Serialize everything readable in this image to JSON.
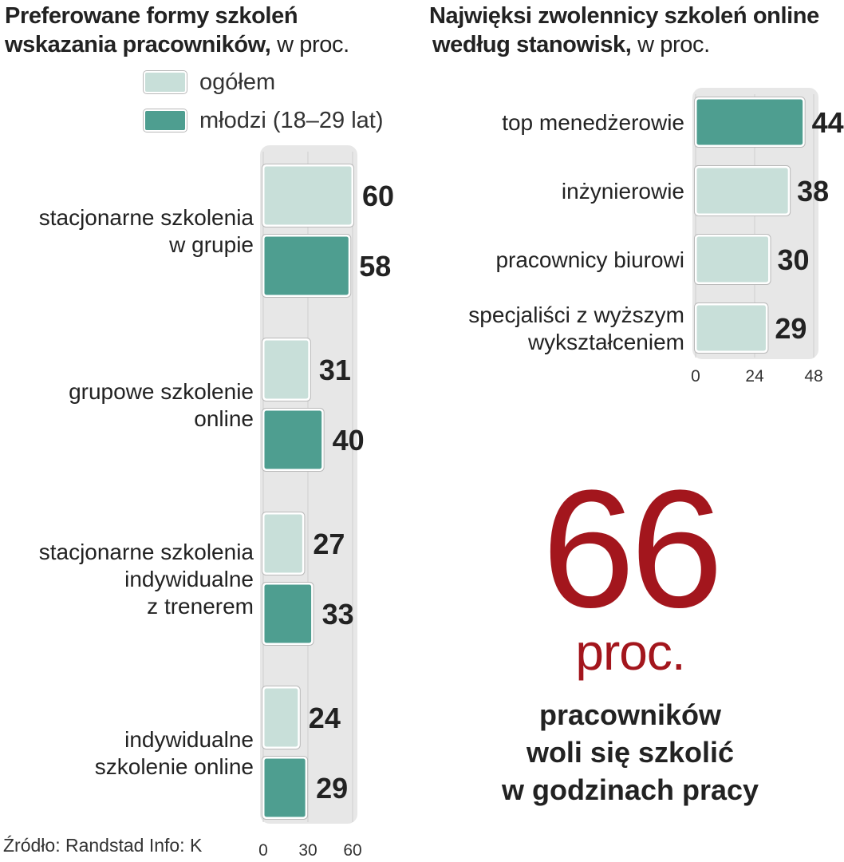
{
  "colors": {
    "light": "#c8dfd9",
    "dark": "#4e9e90",
    "panel": "#e7e7e7",
    "highlight": "#a3161d"
  },
  "chart_data": [
    {
      "type": "bar",
      "orientation": "horizontal",
      "title": "Preferowane formy szkoleń",
      "title_line2": "wskazania pracowników,",
      "unit": "w proc.",
      "categories": [
        [
          "stacjonarne szkolenia",
          "w grupie"
        ],
        [
          "grupowe szkolenie",
          "online"
        ],
        [
          "stacjonarne szkolenia",
          "indywidualne",
          "z trenerem"
        ],
        [
          "indywidualne",
          "szkolenie online"
        ]
      ],
      "series": [
        {
          "name": "ogółem",
          "color_key": "light",
          "values": [
            60,
            31,
            27,
            24
          ]
        },
        {
          "name": "młodzi (18–29 lat)",
          "color_key": "dark",
          "values": [
            58,
            40,
            33,
            29
          ]
        }
      ],
      "xlim": [
        0,
        60
      ],
      "ticks": [
        "0",
        "30",
        "60"
      ],
      "grid": true,
      "legend_position": "top"
    },
    {
      "type": "bar",
      "orientation": "horizontal",
      "title": "Najwięksi zwolennicy szkoleń online",
      "title_line2": "według stanowisk,",
      "unit": "w proc.",
      "categories": [
        [
          "top menedżerowie"
        ],
        [
          "inżynierowie"
        ],
        [
          "pracownicy biurowi"
        ],
        [
          "specjaliści z wyższym",
          "wykształceniem"
        ]
      ],
      "values": [
        44,
        38,
        30,
        29
      ],
      "highlight_index": 0,
      "xlim": [
        0,
        48
      ],
      "ticks": [
        "0",
        "24",
        "48"
      ],
      "grid": true
    }
  ],
  "highlight": {
    "number": "66",
    "unit": "proc.",
    "description": [
      "pracowników",
      "woli się szkolić",
      "w godzinach pracy"
    ]
  },
  "source": "Źródło: Randstad  Info: K"
}
